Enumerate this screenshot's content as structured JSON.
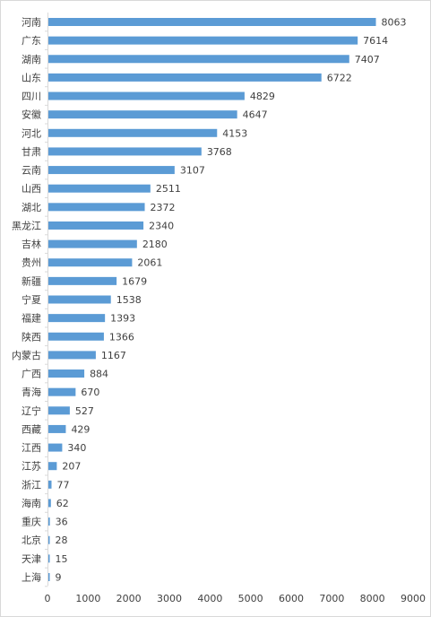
{
  "chart_data": {
    "type": "bar",
    "orientation": "horizontal",
    "categories": [
      "河南",
      "广东",
      "湖南",
      "山东",
      "四川",
      "安徽",
      "河北",
      "甘肃",
      "云南",
      "山西",
      "湖北",
      "黑龙江",
      "吉林",
      "贵州",
      "新疆",
      "宁夏",
      "福建",
      "陕西",
      "内蒙古",
      "广西",
      "青海",
      "辽宁",
      "西藏",
      "江西",
      "江苏",
      "浙江",
      "海南",
      "重庆",
      "北京",
      "天津",
      "上海"
    ],
    "values": [
      8063,
      7614,
      7407,
      6722,
      4829,
      4647,
      4153,
      3768,
      3107,
      2511,
      2372,
      2340,
      2180,
      2061,
      1679,
      1538,
      1393,
      1366,
      1167,
      884,
      670,
      527,
      429,
      340,
      207,
      77,
      62,
      36,
      28,
      15,
      9
    ],
    "value_labels": [
      "8063",
      "7614",
      "7407",
      "6722",
      "4829",
      "4647",
      "4153",
      "3768",
      "3107",
      "2511",
      "2372",
      "2340",
      "2180",
      "2061",
      "1679",
      "1538",
      "1393",
      "1366",
      "1167",
      "884",
      "670",
      "527",
      "429",
      "340",
      "207",
      "77",
      "62",
      "36",
      "28",
      "15",
      "9"
    ],
    "xlim": [
      0,
      9000
    ],
    "x_ticks": [
      "0",
      "1000",
      "2000",
      "3000",
      "4000",
      "5000",
      "6000",
      "7000",
      "8000",
      "9000"
    ],
    "x_tick_values": [
      0,
      1000,
      2000,
      3000,
      4000,
      5000,
      6000,
      7000,
      8000,
      9000
    ],
    "title": "",
    "xlabel": "",
    "ylabel": "",
    "grid": false,
    "legend": "none",
    "bar_color": "#5b9bd5"
  }
}
